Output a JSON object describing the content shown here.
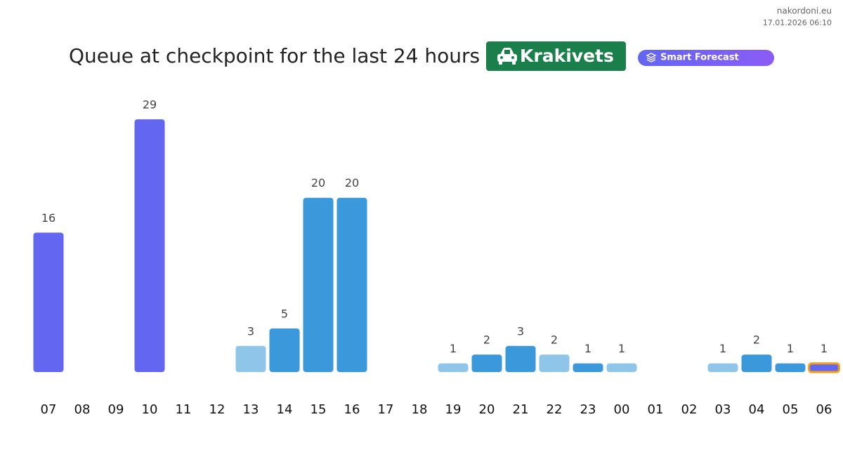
{
  "header": {
    "site": "nakordoni.eu",
    "timestamp": "17.01.2026 06:10"
  },
  "chart_data": {
    "type": "bar",
    "title": "Queue at checkpoint for the last 24 hours",
    "checkpoint": "Krakivets",
    "badge": "Smart Forecast",
    "categories": [
      "07",
      "08",
      "09",
      "10",
      "11",
      "12",
      "13",
      "14",
      "15",
      "16",
      "17",
      "18",
      "19",
      "20",
      "21",
      "22",
      "23",
      "00",
      "01",
      "02",
      "03",
      "04",
      "05",
      "06"
    ],
    "values": [
      16,
      null,
      null,
      29,
      null,
      null,
      3,
      5,
      20,
      20,
      null,
      null,
      1,
      2,
      3,
      2,
      1,
      1,
      null,
      null,
      1,
      2,
      1,
      1
    ],
    "colors": [
      "#6366f1",
      null,
      null,
      "#6366f1",
      null,
      null,
      "#8ec5e9",
      "#3a98db",
      "#3a98db",
      "#3a98db",
      null,
      null,
      "#8ec5e9",
      "#3a98db",
      "#3a98db",
      "#8ec5e9",
      "#3a98db",
      "#8ec5e9",
      null,
      null,
      "#8ec5e9",
      "#3a98db",
      "#3a98db",
      "#6366f1"
    ],
    "highlight_index": 23,
    "highlight_color": "#f5a01a"
  }
}
